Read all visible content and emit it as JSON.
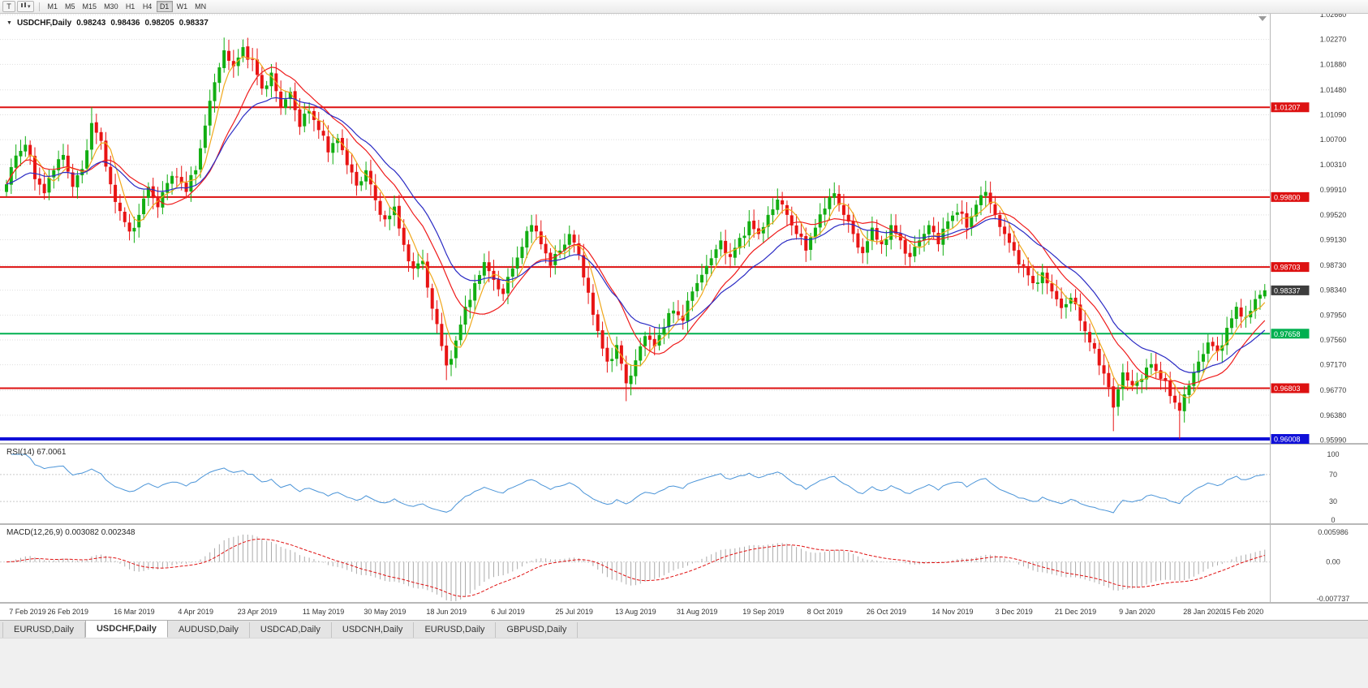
{
  "toolbar": {
    "tool_button": "T",
    "dropdown_caret": "▾",
    "timeframes": [
      "M1",
      "M5",
      "M15",
      "M30",
      "H1",
      "H4",
      "D1",
      "W1",
      "MN"
    ],
    "active_timeframe": "D1"
  },
  "chart": {
    "symbol_title": "USDCHF,Daily",
    "collapse_glyph": "▼",
    "open": "0.98243",
    "high": "0.98436",
    "low": "0.98205",
    "close": "0.98337"
  },
  "price_axis": {
    "labels": [
      "1.02660",
      "1.02270",
      "1.01880",
      "1.01480",
      "1.01090",
      "1.00700",
      "1.00310",
      "0.99910",
      "0.99520",
      "0.99130",
      "0.98730",
      "0.98340",
      "0.97950",
      "0.97560",
      "0.97170",
      "0.96770",
      "0.96380",
      "0.95990"
    ]
  },
  "levels": [
    {
      "label": "1.01207",
      "value": 1.01207,
      "color": "#dd1111",
      "thickness": 2
    },
    {
      "label": "0.99800",
      "value": 0.998,
      "color": "#dd1111",
      "thickness": 2
    },
    {
      "label": "0.98703",
      "value": 0.98703,
      "color": "#dd1111",
      "thickness": 2
    },
    {
      "label": "0.97658",
      "value": 0.97658,
      "color": "#00b050",
      "thickness": 2
    },
    {
      "label": "0.96803",
      "value": 0.96803,
      "color": "#dd1111",
      "thickness": 2
    },
    {
      "label": "0.96008",
      "value": 0.96008,
      "color": "#1010d8",
      "thickness": 4
    }
  ],
  "current_price": {
    "label": "0.98337",
    "value": 0.98337,
    "badge_color": "#3d3d3d"
  },
  "rsi_panel": {
    "header": "RSI(14) 67.0061",
    "period": 14,
    "value": 67.0061,
    "axis_labels": [
      "100",
      "70",
      "30",
      "0"
    ],
    "axis_values": [
      100,
      70,
      30,
      0
    ],
    "line_color": "#4a94d8"
  },
  "macd_panel": {
    "header": "MACD(12,26,9) 0.003082 0.002348",
    "fast": 12,
    "slow": 26,
    "signal": 9,
    "macd_value": 0.003082,
    "signal_value": 0.002348,
    "axis_labels": [
      "0.005986",
      "0.00",
      "-0.007737"
    ],
    "axis_values": [
      0.005986,
      0,
      -0.007737
    ],
    "histogram_color": "#ababab",
    "signal_color": "#e01111"
  },
  "date_axis": {
    "labels": [
      "7 Feb 2019",
      "26 Feb 2019",
      "16 Mar 2019",
      "4 Apr 2019",
      "23 Apr 2019",
      "11 May 2019",
      "30 May 2019",
      "18 Jun 2019",
      "6 Jul 2019",
      "25 Jul 2019",
      "13 Aug 2019",
      "31 Aug 2019",
      "19 Sep 2019",
      "8 Oct 2019",
      "26 Oct 2019",
      "14 Nov 2019",
      "3 Dec 2019",
      "21 Dec 2019",
      "9 Jan 2020",
      "28 Jan 2020",
      "15 Feb 2020"
    ]
  },
  "tabs": {
    "items": [
      "EURUSD,Daily",
      "USDCHF,Daily",
      "AUDUSD,Daily",
      "USDCAD,Daily",
      "USDCNH,Daily",
      "EURUSD,Daily",
      "GBPUSD,Daily"
    ],
    "active_index": 1
  },
  "chart_data": {
    "type": "candlestick",
    "symbol": "USDCHF",
    "timeframe": "Daily",
    "bars": 267,
    "y_axis": {
      "min": 0.9594,
      "max": 1.0267
    },
    "candle_up_color": "#12ae12",
    "candle_down_color": "#e81414",
    "grid": true,
    "price_path_anchors": [
      [
        0,
        1.0
      ],
      [
        2,
        1.0045
      ],
      [
        4,
        1.0062
      ],
      [
        6,
        1.0008
      ],
      [
        8,
        0.9986
      ],
      [
        10,
        1.0022
      ],
      [
        12,
        1.0046
      ],
      [
        14,
        0.9996
      ],
      [
        16,
        1.0024
      ],
      [
        18,
        1.0096
      ],
      [
        20,
        1.0068
      ],
      [
        22,
        1.0
      ],
      [
        24,
        0.9958
      ],
      [
        26,
        0.9926
      ],
      [
        28,
        0.9952
      ],
      [
        30,
        0.9996
      ],
      [
        32,
        0.9964
      ],
      [
        34,
        1.0002
      ],
      [
        36,
        1.0012
      ],
      [
        38,
        0.9988
      ],
      [
        40,
        1.0022
      ],
      [
        42,
        1.0092
      ],
      [
        44,
        1.016
      ],
      [
        46,
        1.021
      ],
      [
        48,
        1.0185
      ],
      [
        50,
        1.0215
      ],
      [
        52,
        1.0195
      ],
      [
        54,
        1.015
      ],
      [
        56,
        1.0175
      ],
      [
        58,
        1.012
      ],
      [
        60,
        1.0145
      ],
      [
        62,
        1.009
      ],
      [
        64,
        1.0115
      ],
      [
        66,
        1.0085
      ],
      [
        68,
        1.005
      ],
      [
        70,
        1.0072
      ],
      [
        72,
        1.003
      ],
      [
        74,
        0.9998
      ],
      [
        76,
        1.0022
      ],
      [
        78,
        0.9975
      ],
      [
        80,
        0.9945
      ],
      [
        82,
        0.9965
      ],
      [
        84,
        0.9905
      ],
      [
        86,
        0.9868
      ],
      [
        88,
        0.988
      ],
      [
        90,
        0.9805
      ],
      [
        93,
        0.9716
      ],
      [
        95,
        0.9755
      ],
      [
        97,
        0.9808
      ],
      [
        99,
        0.9845
      ],
      [
        101,
        0.9878
      ],
      [
        103,
        0.985
      ],
      [
        105,
        0.9828
      ],
      [
        107,
        0.9868
      ],
      [
        109,
        0.9902
      ],
      [
        111,
        0.9936
      ],
      [
        113,
        0.9906
      ],
      [
        115,
        0.9872
      ],
      [
        117,
        0.9896
      ],
      [
        119,
        0.9922
      ],
      [
        121,
        0.989
      ],
      [
        123,
        0.983
      ],
      [
        125,
        0.977
      ],
      [
        127,
        0.9722
      ],
      [
        129,
        0.9748
      ],
      [
        131,
        0.9688
      ],
      [
        133,
        0.9724
      ],
      [
        135,
        0.9762
      ],
      [
        137,
        0.9746
      ],
      [
        139,
        0.9776
      ],
      [
        141,
        0.9802
      ],
      [
        143,
        0.9786
      ],
      [
        145,
        0.9832
      ],
      [
        147,
        0.9858
      ],
      [
        149,
        0.9884
      ],
      [
        151,
        0.9912
      ],
      [
        153,
        0.9886
      ],
      [
        155,
        0.9916
      ],
      [
        157,
        0.9942
      ],
      [
        159,
        0.9922
      ],
      [
        161,
        0.9952
      ],
      [
        163,
        0.9976
      ],
      [
        165,
        0.9952
      ],
      [
        167,
        0.9922
      ],
      [
        169,
        0.9896
      ],
      [
        171,
        0.9932
      ],
      [
        173,
        0.9962
      ],
      [
        175,
        0.9986
      ],
      [
        177,
        0.9952
      ],
      [
        179,
        0.9922
      ],
      [
        181,
        0.9892
      ],
      [
        183,
        0.9932
      ],
      [
        185,
        0.9906
      ],
      [
        187,
        0.9936
      ],
      [
        189,
        0.9912
      ],
      [
        191,
        0.9886
      ],
      [
        193,
        0.9912
      ],
      [
        195,
        0.9936
      ],
      [
        197,
        0.9906
      ],
      [
        199,
        0.9942
      ],
      [
        201,
        0.9956
      ],
      [
        203,
        0.9932
      ],
      [
        205,
        0.9968
      ],
      [
        207,
        0.9988
      ],
      [
        209,
        0.9952
      ],
      [
        211,
        0.9922
      ],
      [
        213,
        0.9896
      ],
      [
        215,
        0.9872
      ],
      [
        217,
        0.9845
      ],
      [
        219,
        0.9862
      ],
      [
        221,
        0.9832
      ],
      [
        223,
        0.9806
      ],
      [
        225,
        0.9822
      ],
      [
        227,
        0.9786
      ],
      [
        229,
        0.9752
      ],
      [
        231,
        0.9716
      ],
      [
        233,
        0.9682
      ],
      [
        234,
        0.965
      ],
      [
        236,
        0.9705
      ],
      [
        238,
        0.9685
      ],
      [
        240,
        0.9695
      ],
      [
        242,
        0.9718
      ],
      [
        244,
        0.9695
      ],
      [
        246,
        0.9668
      ],
      [
        248,
        0.9645
      ],
      [
        250,
        0.9685
      ],
      [
        252,
        0.9722
      ],
      [
        254,
        0.9752
      ],
      [
        256,
        0.9738
      ],
      [
        258,
        0.9775
      ],
      [
        260,
        0.9808
      ],
      [
        262,
        0.9792
      ],
      [
        264,
        0.982
      ],
      [
        266,
        0.98337
      ]
    ],
    "wick_overrides": [
      [
        4,
        "h",
        1.0075
      ],
      [
        18,
        "h",
        1.0121
      ],
      [
        26,
        "l",
        0.9912
      ],
      [
        46,
        "h",
        1.023
      ],
      [
        50,
        "h",
        1.0227
      ],
      [
        93,
        "l",
        0.9693
      ],
      [
        111,
        "h",
        0.9952
      ],
      [
        131,
        "l",
        0.966
      ],
      [
        163,
        "h",
        0.999
      ],
      [
        175,
        "h",
        1.0003
      ],
      [
        207,
        "h",
        0.9997
      ],
      [
        234,
        "l",
        0.9613
      ],
      [
        248,
        "l",
        0.9601
      ]
    ],
    "last_bar": {
      "open": 0.98243,
      "high": 0.98436,
      "low": 0.98205,
      "close": 0.98337
    },
    "moving_averages": [
      {
        "type": "sma",
        "period": 5,
        "color": "#f0a81c"
      },
      {
        "type": "sma",
        "period": 13,
        "color": "#ef1c1c"
      },
      {
        "type": "ema",
        "period": 21,
        "color": "#2b2bc4"
      }
    ]
  }
}
